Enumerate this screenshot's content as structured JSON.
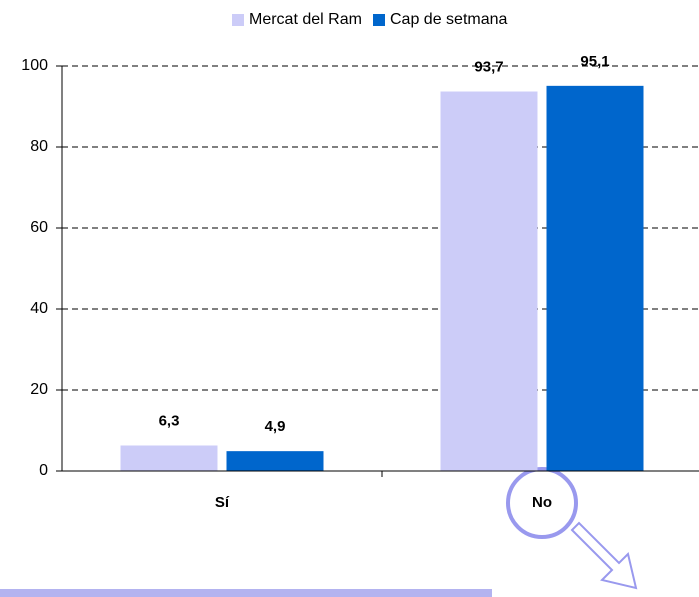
{
  "chart_data": {
    "type": "bar",
    "categories": [
      "Sí",
      "No"
    ],
    "series": [
      {
        "name": "Mercat del Ram",
        "color": "#ccccf8",
        "values": [
          6.3,
          93.7
        ],
        "value_labels": [
          "6,3",
          "93,7"
        ]
      },
      {
        "name": "Cap de setmana",
        "color": "#0066cc",
        "values": [
          4.9,
          95.1
        ],
        "value_labels": [
          "4,9",
          "95,1"
        ]
      }
    ],
    "ylim": [
      0,
      100
    ],
    "yticks": [
      0,
      20,
      40,
      60,
      80,
      100
    ],
    "grid": true
  }
}
